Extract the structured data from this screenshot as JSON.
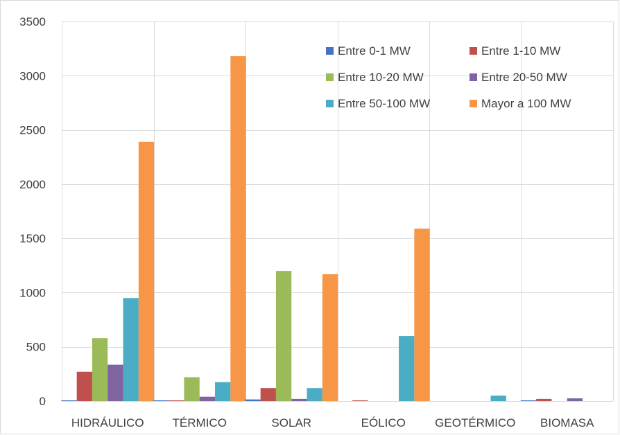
{
  "chart_data": {
    "type": "bar",
    "title": "",
    "xlabel": "",
    "ylabel": "",
    "categories": [
      "HIDRÁULICO",
      "TÉRMICO",
      "SOLAR",
      "EÓLICO",
      "GEOTÉRMICO",
      "BIOMASA"
    ],
    "ylim": [
      0,
      3500
    ],
    "yticks": [
      0,
      500,
      1000,
      1500,
      2000,
      2500,
      3000,
      3500
    ],
    "grid": "vertical category separators",
    "legend_position": "top-right",
    "series": [
      {
        "name": "Entre 0-1 MW",
        "color": "#4472c4",
        "values": [
          5,
          5,
          15,
          0,
          0,
          5
        ]
      },
      {
        "name": "Entre 1-10 MW",
        "color": "#c0504d",
        "values": [
          270,
          5,
          120,
          5,
          0,
          20
        ]
      },
      {
        "name": "Entre 10-20 MW",
        "color": "#9bbb59",
        "values": [
          580,
          220,
          1200,
          0,
          0,
          0
        ]
      },
      {
        "name": "Entre 20-50 MW",
        "color": "#8064a2",
        "values": [
          335,
          40,
          20,
          0,
          0,
          25
        ]
      },
      {
        "name": "Entre 50-100 MW",
        "color": "#4bacc6",
        "values": [
          950,
          175,
          120,
          600,
          50,
          0
        ]
      },
      {
        "name": "Mayor a 100 MW",
        "color": "#f79646",
        "values": [
          2390,
          3180,
          1170,
          1590,
          0,
          0
        ]
      }
    ]
  }
}
